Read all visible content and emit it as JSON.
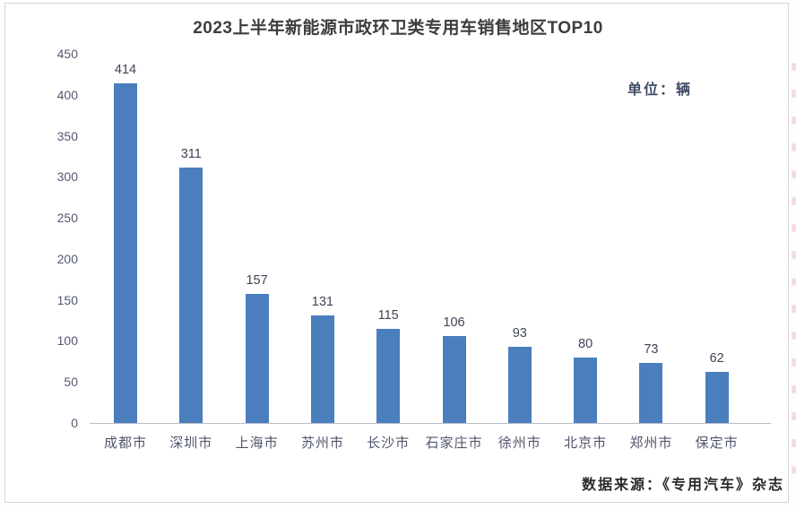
{
  "chart_data": {
    "type": "bar",
    "title": "2023上半年新能源市政环卫类专用车销售地区TOP10",
    "unit_label": "单位：辆",
    "source": "数据来源：《专用汽车》杂志",
    "categories": [
      "成都市",
      "深圳市",
      "上海市",
      "苏州市",
      "长沙市",
      "石家庄市",
      "徐州市",
      "北京市",
      "郑州市",
      "保定市"
    ],
    "values": [
      414,
      311,
      157,
      131,
      115,
      106,
      93,
      80,
      73,
      62
    ],
    "xlabel": "",
    "ylabel": "",
    "ylim": [
      0,
      450
    ],
    "yticks": [
      0,
      50,
      100,
      150,
      200,
      250,
      300,
      350,
      400,
      450
    ],
    "grid": false,
    "legend": "none",
    "bar_color": "#4a7ebd",
    "axis_text_color": "#545870",
    "title_color": "#3d3d3d"
  }
}
